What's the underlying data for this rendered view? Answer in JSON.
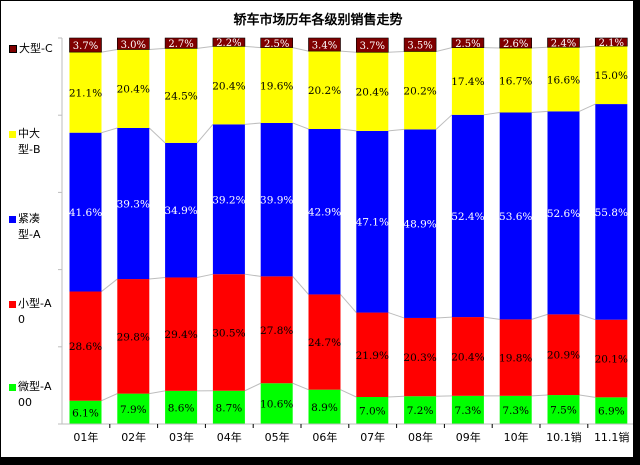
{
  "chart_data": {
    "type": "bar",
    "stacked": true,
    "percent": true,
    "title": "轿车市场历年各级别销售走势",
    "xlabel": "",
    "ylabel": "",
    "ylim": [
      0,
      100
    ],
    "categories": [
      "01年",
      "02年",
      "03年",
      "04年",
      "05年",
      "06年",
      "07年",
      "08年",
      "09年",
      "10年",
      "10.1销",
      "11.1销"
    ],
    "series": [
      {
        "name": "微型-A00",
        "color": "#00ff00",
        "label_color": "#000000",
        "values": [
          6.1,
          7.9,
          8.6,
          8.7,
          10.6,
          8.9,
          7.0,
          7.2,
          7.3,
          7.3,
          7.5,
          6.9
        ],
        "labels": [
          "6.1%",
          "7.9%",
          "8.6%",
          "8.7%",
          "10.6%",
          "8.9%",
          "7.0%",
          "7.2%",
          "7.3%",
          "7.3%",
          "7.5%",
          "6.9%"
        ]
      },
      {
        "name": "小型-A0",
        "color": "#ff0000",
        "label_color": "#000000",
        "values": [
          28.6,
          29.8,
          29.4,
          30.5,
          27.8,
          24.7,
          21.9,
          20.3,
          20.4,
          19.8,
          20.9,
          20.1
        ],
        "labels": [
          "28.6%",
          "29.8%",
          "29.4%",
          "30.5%",
          "27.8%",
          "24.7%",
          "21.9%",
          "20.3%",
          "20.4%",
          "19.8%",
          "20.9%",
          "20.1%"
        ]
      },
      {
        "name": "紧凑型-A",
        "color": "#0000ff",
        "label_color": "#ffffff",
        "values": [
          41.6,
          39.3,
          34.9,
          39.2,
          39.9,
          42.9,
          47.1,
          48.9,
          52.4,
          53.6,
          52.6,
          55.8
        ],
        "labels": [
          "41.6%",
          "39.3%",
          "34.9%",
          "39.2%",
          "39.9%",
          "42.9%",
          "47.1%",
          "48.9%",
          "52.4%",
          "53.6%",
          "52.6%",
          "55.8%"
        ]
      },
      {
        "name": "中大型-B",
        "color": "#ffff00",
        "label_color": "#000000",
        "values": [
          21.1,
          20.4,
          24.5,
          20.4,
          19.6,
          20.2,
          20.4,
          20.2,
          17.4,
          16.7,
          16.6,
          15.0
        ],
        "labels": [
          "21.1%",
          "20.4%",
          "24.5%",
          "20.4%",
          "19.6%",
          "20.2%",
          "20.4%",
          "20.2%",
          "17.4%",
          "16.7%",
          "16.6%",
          "15.0%"
        ]
      },
      {
        "name": "大型-C",
        "color": "#800000",
        "label_color": "#ffffff",
        "values": [
          3.7,
          3.0,
          2.7,
          2.2,
          2.5,
          3.4,
          3.7,
          3.5,
          2.5,
          2.6,
          2.4,
          2.1
        ],
        "labels": [
          "3.7%",
          "3.0%",
          "2.7%",
          "2.2%",
          "2.5%",
          "3.4%",
          "3.7%",
          "3.5%",
          "2.5%",
          "2.6%",
          "2.4%",
          "2.1%"
        ]
      }
    ],
    "legend": {
      "placement": "left",
      "order_top_to_bottom": [
        {
          "text": "大型-C",
          "color": "#800000"
        },
        {
          "text": "中大型-B",
          "color": "#ffff00"
        },
        {
          "text": "紧凑型-A",
          "color": "#0000ff"
        },
        {
          "text": "小型-A0",
          "color": "#ff0000"
        },
        {
          "text": "微型-A00",
          "color": "#00ff00"
        }
      ]
    },
    "series_lines": true,
    "grid": false
  }
}
